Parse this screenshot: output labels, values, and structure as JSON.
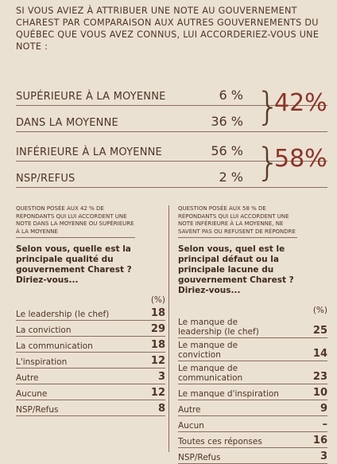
{
  "header": {
    "question": "SI VOUS AVIEZ À ATTRIBUER UNE NOTE AU GOUVERNEMENT CHAREST PAR COMPARAISON AUX AUTRES GOUVERNEMENTS DU QUÉBEC QUE VOUS AVEZ CONNUS, LUI ACCORDERIEZ-VOUS UNE NOTE :"
  },
  "summary": [
    {
      "rows": [
        {
          "label": "SUPÉRIEURE À LA MOYENNE",
          "value": "6 %"
        },
        {
          "label": "DANS LA MOYENNE",
          "value": "36 %"
        }
      ],
      "total": "42%"
    },
    {
      "rows": [
        {
          "label": "INFÉRIEURE À LA MOYENNE",
          "value": "56 %"
        },
        {
          "label": "NSP/REFUS",
          "value": "2 %"
        }
      ],
      "total": "58%"
    }
  ],
  "columns": [
    {
      "note": "QUESTION POSÉE AUX 42 % DE RÉPONDANTS QUI LUI ACCORDENT UNE NOTE DANS LA MOYENNE OU SUPÉRIEURE À LA MOYENNE",
      "question": "Selon vous, quelle est la principale qualité du gouvernement Charest ? Diriez-vous...",
      "unit": "(%)",
      "rows": [
        {
          "label": "Le leadership (le chef)",
          "value": 18
        },
        {
          "label": "La conviction",
          "value": 29
        },
        {
          "label": "La communication",
          "value": 18
        },
        {
          "label": "L'inspiration",
          "value": 12
        },
        {
          "label": "Autre",
          "value": 3
        },
        {
          "label": "Aucune",
          "value": 12
        },
        {
          "label": "NSP/Refus",
          "value": 8
        }
      ]
    },
    {
      "note": "QUESTION POSÉE AUX 58 % DE RÉPONDANTS QUI LUI ACCORDENT UNE NOTE INFÉRIEURE À LA MOYENNE, NE SAVENT PAS OU REFUSENT DE RÉPONDRE",
      "question": "Selon vous, quel est le principal défaut ou la principale lacune du gouvernement Charest ? Diriez-vous...",
      "unit": "(%)",
      "rows": [
        {
          "label": "Le manque de leadership (le chef)",
          "value": 25
        },
        {
          "label": "Le manque de conviction",
          "value": 14
        },
        {
          "label": "Le manque de communication",
          "value": 23
        },
        {
          "label": "Le manque d'inspiration",
          "value": 10
        },
        {
          "label": "Autre",
          "value": 9
        },
        {
          "label": "Aucun",
          "value": "–"
        },
        {
          "label": "Toutes ces réponses",
          "value": 16
        },
        {
          "label": "NSP/Refus",
          "value": 3
        }
      ]
    }
  ]
}
